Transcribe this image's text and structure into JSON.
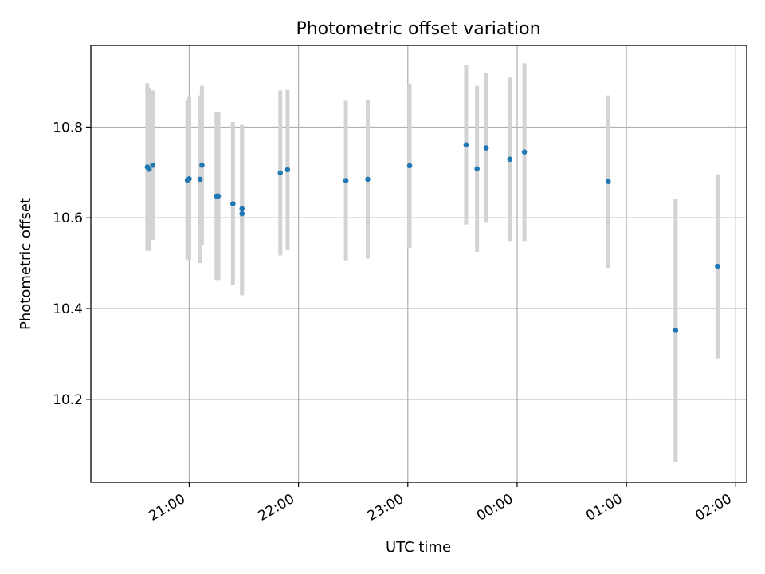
{
  "chart_data": {
    "type": "scatter",
    "title": "Photometric offset variation",
    "xlabel": "UTC time",
    "ylabel": "Photometric offset",
    "x_ticks": [
      {
        "time": "21:00",
        "label": "21:00"
      },
      {
        "time": "22:00",
        "label": "22:00"
      },
      {
        "time": "23:00",
        "label": "23:00"
      },
      {
        "time": "24:00",
        "label": "00:00"
      },
      {
        "time": "25:00",
        "label": "01:00"
      },
      {
        "time": "26:00",
        "label": "02:00"
      }
    ],
    "y_ticks": [
      10.2,
      10.4,
      10.6,
      10.8
    ],
    "xlim": [
      "20:06",
      "26:06"
    ],
    "ylim": [
      10.017,
      10.98
    ],
    "grid": true,
    "colors": {
      "point": "#1f77b4",
      "errorbar": "#d3d3d3",
      "grid": "#b0b0b0"
    },
    "points": [
      {
        "time": "20:37",
        "y": 10.712,
        "err": 0.185
      },
      {
        "time": "20:38",
        "y": 10.707,
        "err": 0.18
      },
      {
        "time": "20:40",
        "y": 10.716,
        "err": 0.165
      },
      {
        "time": "20:59",
        "y": 10.683,
        "err": 0.175
      },
      {
        "time": "21:00",
        "y": 10.686,
        "err": 0.18
      },
      {
        "time": "21:06",
        "y": 10.685,
        "err": 0.185
      },
      {
        "time": "21:07",
        "y": 10.716,
        "err": 0.175
      },
      {
        "time": "21:15",
        "y": 10.648,
        "err": 0.185
      },
      {
        "time": "21:16",
        "y": 10.648,
        "err": 0.185
      },
      {
        "time": "21:24",
        "y": 10.631,
        "err": 0.18
      },
      {
        "time": "21:29",
        "y": 10.62,
        "err": 0.185
      },
      {
        "time": "21:29",
        "y": 10.609,
        "err": 0.18
      },
      {
        "time": "21:50",
        "y": 10.699,
        "err": 0.182
      },
      {
        "time": "21:54",
        "y": 10.706,
        "err": 0.176
      },
      {
        "time": "22:26",
        "y": 10.682,
        "err": 0.176
      },
      {
        "time": "22:38",
        "y": 10.685,
        "err": 0.175
      },
      {
        "time": "23:01",
        "y": 10.715,
        "err": 0.181
      },
      {
        "time": "23:32",
        "y": 10.761,
        "err": 0.176
      },
      {
        "time": "23:38",
        "y": 10.708,
        "err": 0.183
      },
      {
        "time": "23:43",
        "y": 10.754,
        "err": 0.165
      },
      {
        "time": "23:56",
        "y": 10.729,
        "err": 0.18
      },
      {
        "time": "24:04",
        "y": 10.745,
        "err": 0.196
      },
      {
        "time": "24:50",
        "y": 10.68,
        "err": 0.19
      },
      {
        "time": "25:27",
        "y": 10.352,
        "err": 0.29
      },
      {
        "time": "25:50",
        "y": 10.493,
        "err": 0.203
      }
    ]
  }
}
